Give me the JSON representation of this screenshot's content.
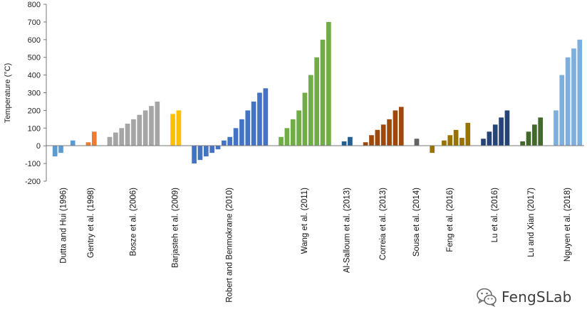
{
  "chart_data": {
    "type": "bar",
    "ylabel": "Temperature (°C)",
    "ylim": [
      -200,
      800
    ],
    "yticks": [
      800,
      700,
      600,
      500,
      400,
      300,
      200,
      100,
      0,
      -100,
      -200
    ],
    "grid": false,
    "groups": [
      {
        "name": "Dutta and Hui (1996)",
        "color": "#5b9bd5",
        "values": [
          -60,
          -40,
          0,
          30
        ]
      },
      {
        "name": "Gentry et al. (1998)",
        "color": "#ed7d31",
        "values": [
          20,
          80
        ]
      },
      {
        "name": "Bosze et al. (2006)",
        "color": "#a5a5a5",
        "values": [
          50,
          75,
          100,
          125,
          150,
          175,
          200,
          225,
          250
        ]
      },
      {
        "name": "Barjasteh et al. (2009)",
        "color": "#ffc000",
        "values": [
          180,
          200
        ]
      },
      {
        "name": "Robert and Benmokrane (2010)",
        "color": "#4472c4",
        "values": [
          -100,
          -80,
          -60,
          -40,
          -20,
          30,
          50,
          100,
          150,
          200,
          250,
          300,
          325
        ]
      },
      {
        "name": "Wang et al. (2011)",
        "color": "#70ad47",
        "values": [
          50,
          100,
          150,
          200,
          300,
          400,
          500,
          600,
          700
        ]
      },
      {
        "name": "Al-Salloum et al. (2013)",
        "color": "#255e91",
        "values": [
          25,
          50
        ]
      },
      {
        "name": "Correia et al. (2013)",
        "color": "#9e480e",
        "values": [
          20,
          60,
          90,
          120,
          150,
          200,
          220
        ]
      },
      {
        "name": "Sousa et al. (2014)",
        "color": "#636363",
        "values": [
          40
        ]
      },
      {
        "name": "Feng et al. (2016)",
        "color": "#997300",
        "values": [
          -40,
          0,
          30,
          60,
          90,
          45,
          130
        ]
      },
      {
        "name": "Lu et al. (2016)",
        "color": "#264478",
        "values": [
          40,
          80,
          120,
          160,
          200
        ]
      },
      {
        "name": "Lu and Xian (2017)",
        "color": "#43682b",
        "values": [
          25,
          80,
          120,
          160
        ]
      },
      {
        "name": "Nguyen et al. (2018)",
        "color": "#7cafdd",
        "values": [
          200,
          400,
          500,
          550,
          600
        ]
      }
    ]
  },
  "watermark": {
    "text": "FengSLab",
    "icon": "wechat-icon"
  }
}
